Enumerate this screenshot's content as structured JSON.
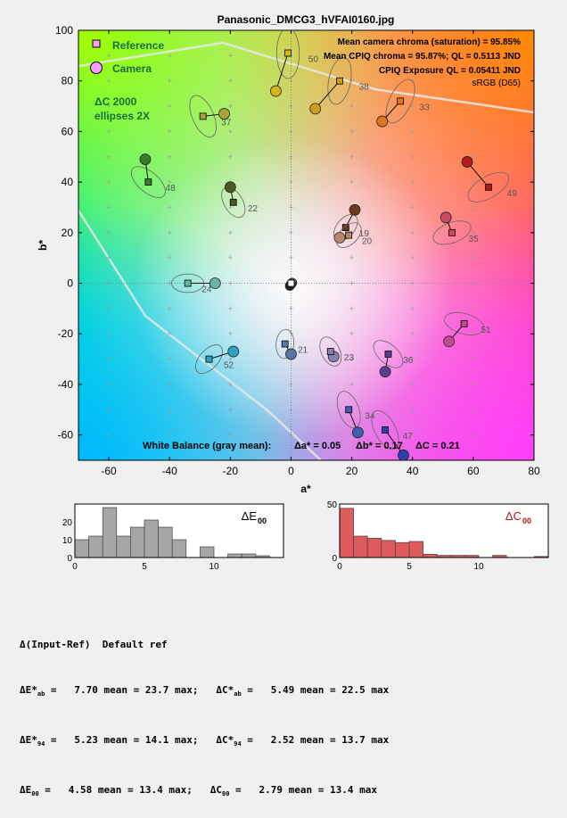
{
  "chart_data": [
    {
      "type": "scatter",
      "title": "Panasonic_DMCG3_hVFAI0160.jpg",
      "xlabel": "a*",
      "ylabel": "b*",
      "xlim": [
        -70,
        80
      ],
      "ylim": [
        -70,
        100
      ],
      "xticks": [
        -60,
        -40,
        -20,
        0,
        20,
        40,
        60,
        80
      ],
      "yticks": [
        -60,
        -40,
        -20,
        0,
        20,
        40,
        60,
        80,
        100
      ],
      "grid": true,
      "legend": {
        "placement": "top-left",
        "reference_label": "Reference",
        "camera_label": "Camera",
        "ellipse_note_line1": "ΔC 2000",
        "ellipse_note_line2": "ellipses 2X"
      },
      "annotations": {
        "mean_camera_chroma": "Mean camera chroma (saturation) = 95.85%",
        "mean_cpiq_chroma": "Mean CPIQ chroma = 95.87%;  QL = 0.5113 JND",
        "cpiq_exposure": "CPIQ Exposure QL = 0.05411 JND",
        "color_space": "sRGB (D65)",
        "white_balance_label": "White Balance (gray mean):",
        "wb_da": "Δa* = 0.05",
        "wb_db": "Δb* = 0.17",
        "wb_dc": "ΔC = 0.21"
      },
      "patches": [
        {
          "id": "19",
          "ref": [
            18,
            22
          ],
          "cam": [
            21,
            29
          ],
          "color": "#6b3a1e"
        },
        {
          "id": "20",
          "ref": [
            19,
            19
          ],
          "cam": [
            16,
            18
          ],
          "color": "#b7876c"
        },
        {
          "id": "21",
          "ref": [
            -2,
            -24
          ],
          "cam": [
            0,
            -28
          ],
          "color": "#5577a8"
        },
        {
          "id": "22",
          "ref": [
            -19,
            32
          ],
          "cam": [
            -20,
            38
          ],
          "color": "#4b5a22"
        },
        {
          "id": "23",
          "ref": [
            13,
            -27
          ],
          "cam": [
            14,
            -29
          ],
          "color": "#8a80b0"
        },
        {
          "id": "24",
          "ref": [
            -34,
            0
          ],
          "cam": [
            -25,
            0
          ],
          "color": "#69b5a6"
        },
        {
          "id": "33",
          "ref": [
            36,
            72
          ],
          "cam": [
            30,
            64
          ],
          "color": "#e0781d"
        },
        {
          "id": "34",
          "ref": [
            19,
            -50
          ],
          "cam": [
            22,
            -59
          ],
          "color": "#3f5fae"
        },
        {
          "id": "35",
          "ref": [
            53,
            20
          ],
          "cam": [
            51,
            26
          ],
          "color": "#c84a5a"
        },
        {
          "id": "36",
          "ref": [
            32,
            -28
          ],
          "cam": [
            31,
            -35
          ],
          "color": "#5d3e8c"
        },
        {
          "id": "37",
          "ref": [
            -29,
            66
          ],
          "cam": [
            -22,
            67
          ],
          "color": "#a8a339"
        },
        {
          "id": "38",
          "ref": [
            16,
            80
          ],
          "cam": [
            8,
            69
          ],
          "color": "#d09a1a"
        },
        {
          "id": "47",
          "ref": [
            31,
            -58
          ],
          "cam": [
            37,
            -68
          ],
          "color": "#2f3fa8"
        },
        {
          "id": "48",
          "ref": [
            -47,
            40
          ],
          "cam": [
            -48,
            49
          ],
          "color": "#3c7a2c"
        },
        {
          "id": "49",
          "ref": [
            65,
            38
          ],
          "cam": [
            58,
            48
          ],
          "color": "#b01c1c"
        },
        {
          "id": "50",
          "ref": [
            -1,
            91
          ],
          "cam": [
            -5,
            76
          ],
          "color": "#d5b61a"
        },
        {
          "id": "51",
          "ref": [
            57,
            -16
          ],
          "cam": [
            52,
            -23
          ],
          "color": "#c04a8c"
        },
        {
          "id": "52",
          "ref": [
            -27,
            -30
          ],
          "cam": [
            -19,
            -27
          ],
          "color": "#2fa0c6"
        }
      ]
    },
    {
      "type": "bar",
      "title": "ΔE00",
      "xlim": [
        0,
        15
      ],
      "ylim": [
        0,
        30
      ],
      "xticks": [
        0,
        5,
        10
      ],
      "yticks": [
        0,
        10,
        20
      ],
      "bin_width": 1,
      "bin_starts": [
        0,
        1,
        2,
        3,
        4,
        5,
        6,
        7,
        8,
        9,
        10,
        11,
        12,
        13,
        14
      ],
      "values": [
        10,
        12,
        28,
        12,
        17,
        21,
        17,
        10,
        0,
        6,
        0,
        2,
        2,
        1,
        0
      ],
      "color": "#a6a6a6"
    },
    {
      "type": "bar",
      "title": "ΔC00",
      "xlim": [
        0,
        15
      ],
      "ylim": [
        0,
        50
      ],
      "xticks": [
        0,
        5,
        10
      ],
      "yticks": [
        0,
        50
      ],
      "bin_width": 1,
      "bin_starts": [
        0,
        1,
        2,
        3,
        4,
        5,
        6,
        7,
        8,
        9,
        10,
        11,
        12,
        13,
        14
      ],
      "values": [
        46,
        20,
        18,
        16,
        14,
        15,
        3,
        2,
        2,
        2,
        0,
        2,
        0,
        0,
        1
      ],
      "color": "#de5b5b"
    }
  ],
  "summary": {
    "header": "Δ(Input-Ref)  Default ref",
    "rows": [
      {
        "lmet": "ΔE*",
        "lsub": "ab",
        "lvals": " =   7.70 mean = 23.7 max;   ",
        "rmet": "ΔC*",
        "rsub": "ab",
        "rvals": " =   5.49 mean = 22.5 max"
      },
      {
        "lmet": "ΔE*",
        "lsub": "94",
        "lvals": " =   5.23 mean = 14.1 max;   ",
        "rmet": "ΔC*",
        "rsub": "94",
        "rvals": " =   2.52 mean = 13.7 max"
      },
      {
        "lmet": "ΔE",
        "lsub": "00",
        "lvals": " =   4.58 mean = 13.4 max;   ",
        "rmet": "ΔC",
        "rsub": "00",
        "rvals": " =   2.79 mean = 13.4 max"
      }
    ]
  }
}
